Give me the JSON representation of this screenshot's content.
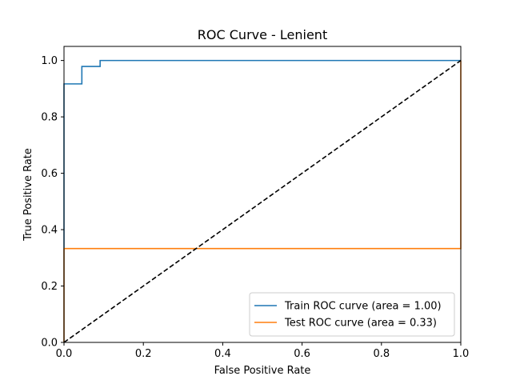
{
  "chart_data": {
    "type": "line",
    "title": "ROC Curve - Lenient",
    "xlabel": "False Positive Rate",
    "ylabel": "True Positive Rate",
    "xlim": [
      0.0,
      1.0
    ],
    "ylim": [
      0.0,
      1.05
    ],
    "xticks": [
      0.0,
      0.2,
      0.4,
      0.6,
      0.8,
      1.0
    ],
    "yticks": [
      0.0,
      0.2,
      0.4,
      0.6,
      0.8,
      1.0
    ],
    "xtick_labels": [
      "0.0",
      "0.2",
      "0.4",
      "0.6",
      "0.8",
      "1.0"
    ],
    "ytick_labels": [
      "0.0",
      "0.2",
      "0.4",
      "0.6",
      "0.8",
      "1.0"
    ],
    "grid": false,
    "legend_position": "lower-right",
    "series": [
      {
        "name": "Train ROC curve (area = 1.00)",
        "color": "#1f77b4",
        "style": "steps",
        "x": [
          0.0,
          0.0,
          0.045,
          0.045,
          0.091,
          0.091,
          1.0
        ],
        "y": [
          0.0,
          0.917,
          0.917,
          0.979,
          0.979,
          1.0,
          1.0
        ]
      },
      {
        "name": "Test ROC curve (area = 0.33)",
        "color": "#ff7f0e",
        "style": "steps",
        "x": [
          0.0,
          0.0,
          1.0,
          1.0
        ],
        "y": [
          0.0,
          0.333,
          0.333,
          1.0
        ]
      },
      {
        "name": "",
        "color": "#000000",
        "style": "dashed",
        "x": [
          0.0,
          1.0
        ],
        "y": [
          0.0,
          1.0
        ]
      }
    ]
  }
}
